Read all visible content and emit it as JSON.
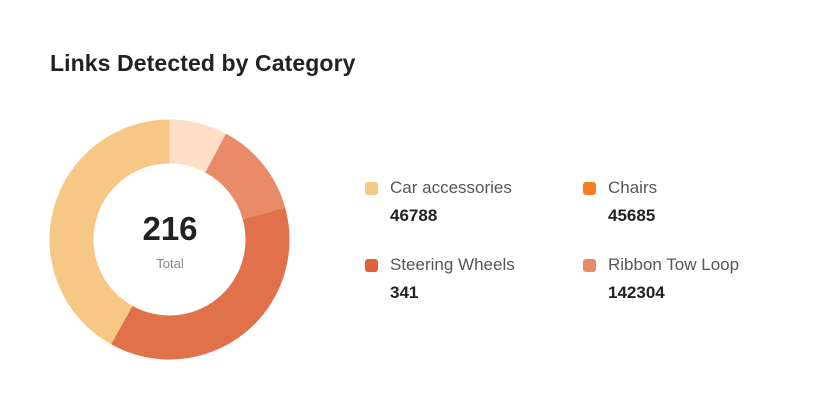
{
  "title": "Links Detected by Category",
  "chart_data": {
    "type": "pie",
    "variant": "donut",
    "title": "Links Detected by Category",
    "center": {
      "value": "216",
      "label": "Total"
    },
    "segments": [
      {
        "share_percent": 7.8,
        "color": "#FFDEC8"
      },
      {
        "share_percent": 12.9,
        "color": "#E98B68"
      },
      {
        "share_percent": 37.4,
        "color": "#E0714B"
      },
      {
        "share_percent": 41.9,
        "color": "#F7C885"
      }
    ],
    "legend": [
      {
        "label": "Car accessories",
        "value": "46788",
        "color": "#F7C885"
      },
      {
        "label": "Chairs",
        "value": "45685",
        "color": "#F97B22"
      },
      {
        "label": "Steering Wheels",
        "value": "341",
        "color": "#E0623A"
      },
      {
        "label": "Ribbon Tow Loop",
        "value": "142304",
        "color": "#E88B6A"
      }
    ],
    "legend_placement": "right"
  }
}
